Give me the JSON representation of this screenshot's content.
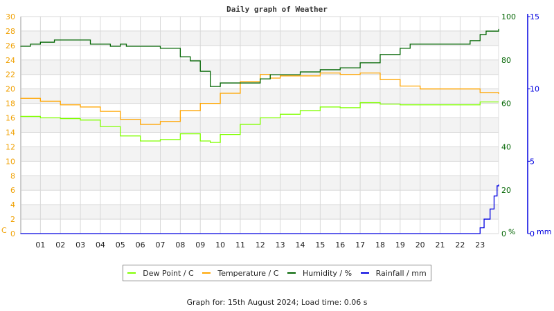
{
  "chart_data": {
    "type": "line",
    "title": "Daily graph of Weather",
    "x_tick_labels": [
      "01",
      "02",
      "03",
      "04",
      "05",
      "06",
      "07",
      "08",
      "09",
      "10",
      "11",
      "12",
      "13",
      "14",
      "15",
      "16",
      "17",
      "18",
      "19",
      "20",
      "21",
      "22",
      "23"
    ],
    "xlim_hours": [
      0,
      24
    ],
    "grid": true,
    "axes": {
      "left": {
        "unit": "C",
        "ylim": [
          0,
          30
        ],
        "ticks": [
          0,
          2,
          4,
          6,
          8,
          10,
          12,
          14,
          16,
          18,
          20,
          22,
          24,
          26,
          28,
          30
        ],
        "color": "#f0a000"
      },
      "right_humidity": {
        "unit": "%",
        "ylim": [
          0,
          100
        ],
        "ticks": [
          0,
          20,
          40,
          60,
          80,
          100
        ],
        "color": "#006400"
      },
      "right_rain": {
        "unit": "mm",
        "ylim": [
          0,
          15
        ],
        "ticks": [
          0,
          5,
          10,
          15
        ],
        "color": "#0000e0"
      }
    },
    "series": [
      {
        "name": "Dew Point / C",
        "color": "#80ff00",
        "axis": "left",
        "x": [
          0,
          1,
          2,
          3,
          4,
          5,
          6,
          7,
          8,
          9,
          9.5,
          10,
          11,
          12,
          13,
          14,
          15,
          16,
          17,
          18,
          19,
          20,
          21,
          22,
          23,
          23.93
        ],
        "y": [
          16.2,
          16.0,
          15.9,
          15.7,
          14.8,
          13.5,
          12.8,
          13.0,
          13.8,
          12.8,
          12.6,
          13.7,
          15.1,
          16.0,
          16.5,
          17.0,
          17.5,
          17.4,
          18.1,
          17.9,
          17.8,
          17.8,
          17.8,
          17.8,
          18.2,
          18.2
        ]
      },
      {
        "name": "Temperature / C",
        "color": "#ffa500",
        "axis": "left",
        "x": [
          0,
          1,
          2,
          3,
          4,
          5,
          6,
          7,
          8,
          9,
          10,
          11,
          12,
          12.5,
          13,
          14,
          15,
          16,
          17,
          18,
          19,
          20,
          21,
          22,
          23,
          23.93
        ],
        "y": [
          18.7,
          18.3,
          17.8,
          17.5,
          16.9,
          15.8,
          15.1,
          15.5,
          17.0,
          18.0,
          19.4,
          21.0,
          22.0,
          21.5,
          21.8,
          21.8,
          22.2,
          22.0,
          22.2,
          21.3,
          20.4,
          20.0,
          20.0,
          20.0,
          19.5,
          19.3
        ]
      },
      {
        "name": "Humidity / %",
        "color": "#006400",
        "axis": "right_humidity",
        "x": [
          0,
          0.5,
          1,
          1.7,
          3.5,
          4.5,
          5,
          5.3,
          7,
          8,
          8.5,
          9,
          9.5,
          10,
          11,
          12,
          12.5,
          14,
          15,
          16,
          17,
          18,
          19,
          19.5,
          22,
          22.5,
          23,
          23.3,
          23.93
        ],
        "y": [
          86.3,
          87.3,
          88.2,
          89.2,
          87.3,
          86.3,
          87.3,
          86.3,
          85.4,
          81.5,
          79.6,
          74.8,
          67.8,
          69.4,
          69.4,
          71.3,
          73.2,
          74.5,
          75.5,
          76.4,
          78.7,
          82.5,
          85.4,
          87.3,
          87.3,
          88.9,
          91.7,
          93.3,
          94.3
        ]
      },
      {
        "name": "Rainfall / mm",
        "color": "#0000e0",
        "axis": "right_rain",
        "x": [
          0,
          22.8,
          23.0,
          23.2,
          23.5,
          23.7,
          23.85,
          23.93
        ],
        "y": [
          0,
          0,
          0.4,
          1.0,
          1.7,
          2.6,
          3.3,
          3.4
        ]
      }
    ]
  },
  "footer": "Graph for: 15th August 2024; Load time: 0.06 s"
}
